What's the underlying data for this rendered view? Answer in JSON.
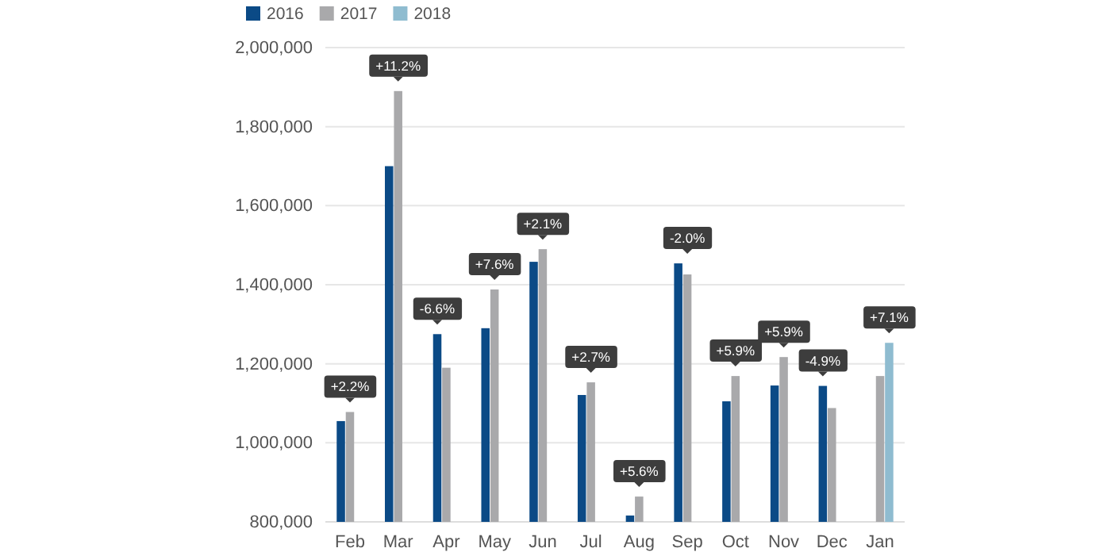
{
  "chart_data": {
    "type": "bar",
    "categories": [
      "Feb",
      "Mar",
      "Apr",
      "May",
      "Jun",
      "Jul",
      "Aug",
      "Sep",
      "Oct",
      "Nov",
      "Dec",
      "Jan"
    ],
    "series": [
      {
        "name": "2016",
        "color": "#0b4a86",
        "values": [
          1055000,
          1700000,
          1275000,
          1290000,
          1458000,
          1121000,
          816000,
          1454000,
          1105000,
          1145000,
          1144000,
          null
        ]
      },
      {
        "name": "2017",
        "color": "#a9a9ab",
        "values": [
          1078000,
          1890000,
          1190000,
          1388000,
          1490000,
          1153000,
          864000,
          1426000,
          1169000,
          1217000,
          1088000,
          1169000
        ]
      },
      {
        "name": "2018",
        "color": "#8fbcd0",
        "values": [
          null,
          null,
          null,
          null,
          null,
          null,
          null,
          null,
          null,
          null,
          null,
          1253000
        ]
      }
    ],
    "ylim": [
      800000,
      2000000
    ],
    "yticks": [
      {
        "value": 800000,
        "label": "800,000"
      },
      {
        "value": 1000000,
        "label": "1,000,000"
      },
      {
        "value": 1200000,
        "label": "1,200,000"
      },
      {
        "value": 1400000,
        "label": "1,400,000"
      },
      {
        "value": 1600000,
        "label": "1,600,000"
      },
      {
        "value": 1800000,
        "label": "1,800,000"
      },
      {
        "value": 2000000,
        "label": "2,000,000"
      }
    ],
    "grid": "y",
    "legend": "top left",
    "annotations": [
      {
        "text": "+2.2%",
        "x": "Feb",
        "y": 1078000
      },
      {
        "text": "+11.2%",
        "x": "Mar",
        "y": 1890000
      },
      {
        "text": "-6.6%",
        "x": "Apr",
        "y": 1275000
      },
      {
        "text": "+7.6%",
        "x": "May",
        "y": 1388000
      },
      {
        "text": "+2.1%",
        "x": "Jun",
        "y": 1490000
      },
      {
        "text": "+2.7%",
        "x": "Jul",
        "y": 1153000
      },
      {
        "text": "+5.6%",
        "x": "Aug",
        "y": 864000
      },
      {
        "text": "-2.0%",
        "x": "Sep",
        "y": 1426000
      },
      {
        "text": "+5.9%",
        "x": "Oct",
        "y": 1169000
      },
      {
        "text": "+5.9%",
        "x": "Nov",
        "y": 1217000
      },
      {
        "text": "-4.9%",
        "x": "Dec",
        "y": 1144000
      },
      {
        "text": "+7.1%",
        "x": "Jan",
        "y": 1253000
      }
    ]
  }
}
